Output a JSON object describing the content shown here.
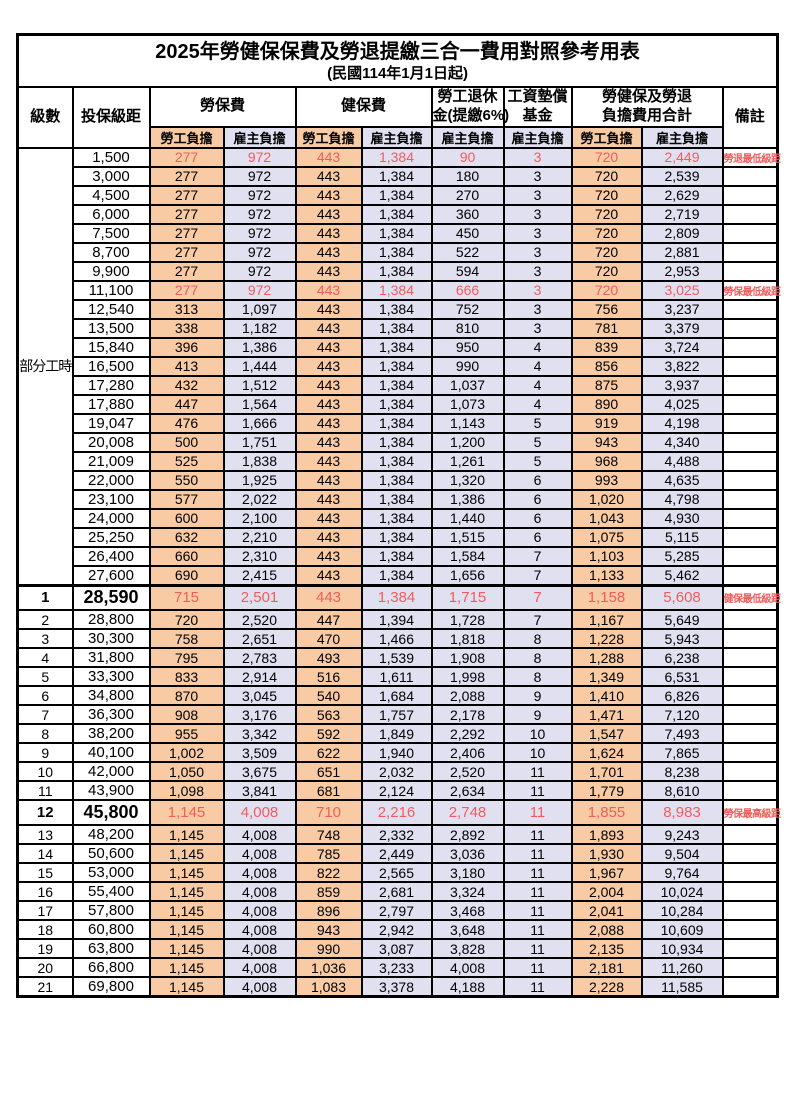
{
  "page": {
    "title": "2025年勞健保保費及勞退提繳三合一費用對照參考用表",
    "subtitle": "(民國114年1月1日起)"
  },
  "colors": {
    "employee_column_orange": "#f8cba4",
    "employer_column_lavender": "#e1e0f1",
    "highlight_red": "#f25c5c",
    "border_black": "#000000"
  },
  "table": {
    "headers": {
      "level": "級數",
      "bracket": "投保級距",
      "labor_insurance": "勞保費",
      "health_insurance": "健保費",
      "pension_line1": "勞工退休",
      "pension_line2": "金(提繳6%)",
      "arrear_line1": "工資墊償",
      "arrear_line2": "基金",
      "total_line1": "勞健保及勞退",
      "total_line2": "負擔費用合計",
      "remark": "備註",
      "employee": "勞工負擔",
      "employer": "雇主負擔"
    },
    "part_time_label": "部分工時",
    "rows": [
      {
        "level": "",
        "bracket": "1,500",
        "li_emp": "277",
        "li_er": "972",
        "hi_emp": "443",
        "hi_er": "1,384",
        "pension": "90",
        "arrear": "3",
        "tot_emp": "720",
        "tot_er": "2,449",
        "note": "勞退最低級距",
        "flag": "hl"
      },
      {
        "level": "",
        "bracket": "3,000",
        "li_emp": "277",
        "li_er": "972",
        "hi_emp": "443",
        "hi_er": "1,384",
        "pension": "180",
        "arrear": "3",
        "tot_emp": "720",
        "tot_er": "2,539",
        "note": "",
        "flag": ""
      },
      {
        "level": "",
        "bracket": "4,500",
        "li_emp": "277",
        "li_er": "972",
        "hi_emp": "443",
        "hi_er": "1,384",
        "pension": "270",
        "arrear": "3",
        "tot_emp": "720",
        "tot_er": "2,629",
        "note": "",
        "flag": ""
      },
      {
        "level": "",
        "bracket": "6,000",
        "li_emp": "277",
        "li_er": "972",
        "hi_emp": "443",
        "hi_er": "1,384",
        "pension": "360",
        "arrear": "3",
        "tot_emp": "720",
        "tot_er": "2,719",
        "note": "",
        "flag": ""
      },
      {
        "level": "",
        "bracket": "7,500",
        "li_emp": "277",
        "li_er": "972",
        "hi_emp": "443",
        "hi_er": "1,384",
        "pension": "450",
        "arrear": "3",
        "tot_emp": "720",
        "tot_er": "2,809",
        "note": "",
        "flag": ""
      },
      {
        "level": "",
        "bracket": "8,700",
        "li_emp": "277",
        "li_er": "972",
        "hi_emp": "443",
        "hi_er": "1,384",
        "pension": "522",
        "arrear": "3",
        "tot_emp": "720",
        "tot_er": "2,881",
        "note": "",
        "flag": ""
      },
      {
        "level": "",
        "bracket": "9,900",
        "li_emp": "277",
        "li_er": "972",
        "hi_emp": "443",
        "hi_er": "1,384",
        "pension": "594",
        "arrear": "3",
        "tot_emp": "720",
        "tot_er": "2,953",
        "note": "",
        "flag": ""
      },
      {
        "level": "",
        "bracket": "11,100",
        "li_emp": "277",
        "li_er": "972",
        "hi_emp": "443",
        "hi_er": "1,384",
        "pension": "666",
        "arrear": "3",
        "tot_emp": "720",
        "tot_er": "3,025",
        "note": "勞保最低級距",
        "flag": "hl"
      },
      {
        "level": "",
        "bracket": "12,540",
        "li_emp": "313",
        "li_er": "1,097",
        "hi_emp": "443",
        "hi_er": "1,384",
        "pension": "752",
        "arrear": "3",
        "tot_emp": "756",
        "tot_er": "3,237",
        "note": "",
        "flag": ""
      },
      {
        "level": "",
        "bracket": "13,500",
        "li_emp": "338",
        "li_er": "1,182",
        "hi_emp": "443",
        "hi_er": "1,384",
        "pension": "810",
        "arrear": "3",
        "tot_emp": "781",
        "tot_er": "3,379",
        "note": "",
        "flag": ""
      },
      {
        "level": "",
        "bracket": "15,840",
        "li_emp": "396",
        "li_er": "1,386",
        "hi_emp": "443",
        "hi_er": "1,384",
        "pension": "950",
        "arrear": "4",
        "tot_emp": "839",
        "tot_er": "3,724",
        "note": "",
        "flag": ""
      },
      {
        "level": "",
        "bracket": "16,500",
        "li_emp": "413",
        "li_er": "1,444",
        "hi_emp": "443",
        "hi_er": "1,384",
        "pension": "990",
        "arrear": "4",
        "tot_emp": "856",
        "tot_er": "3,822",
        "note": "",
        "flag": ""
      },
      {
        "level": "",
        "bracket": "17,280",
        "li_emp": "432",
        "li_er": "1,512",
        "hi_emp": "443",
        "hi_er": "1,384",
        "pension": "1,037",
        "arrear": "4",
        "tot_emp": "875",
        "tot_er": "3,937",
        "note": "",
        "flag": ""
      },
      {
        "level": "",
        "bracket": "17,880",
        "li_emp": "447",
        "li_er": "1,564",
        "hi_emp": "443",
        "hi_er": "1,384",
        "pension": "1,073",
        "arrear": "4",
        "tot_emp": "890",
        "tot_er": "4,025",
        "note": "",
        "flag": ""
      },
      {
        "level": "",
        "bracket": "19,047",
        "li_emp": "476",
        "li_er": "1,666",
        "hi_emp": "443",
        "hi_er": "1,384",
        "pension": "1,143",
        "arrear": "5",
        "tot_emp": "919",
        "tot_er": "4,198",
        "note": "",
        "flag": ""
      },
      {
        "level": "",
        "bracket": "20,008",
        "li_emp": "500",
        "li_er": "1,751",
        "hi_emp": "443",
        "hi_er": "1,384",
        "pension": "1,200",
        "arrear": "5",
        "tot_emp": "943",
        "tot_er": "4,340",
        "note": "",
        "flag": ""
      },
      {
        "level": "",
        "bracket": "21,009",
        "li_emp": "525",
        "li_er": "1,838",
        "hi_emp": "443",
        "hi_er": "1,384",
        "pension": "1,261",
        "arrear": "5",
        "tot_emp": "968",
        "tot_er": "4,488",
        "note": "",
        "flag": ""
      },
      {
        "level": "",
        "bracket": "22,000",
        "li_emp": "550",
        "li_er": "1,925",
        "hi_emp": "443",
        "hi_er": "1,384",
        "pension": "1,320",
        "arrear": "6",
        "tot_emp": "993",
        "tot_er": "4,635",
        "note": "",
        "flag": ""
      },
      {
        "level": "",
        "bracket": "23,100",
        "li_emp": "577",
        "li_er": "2,022",
        "hi_emp": "443",
        "hi_er": "1,384",
        "pension": "1,386",
        "arrear": "6",
        "tot_emp": "1,020",
        "tot_er": "4,798",
        "note": "",
        "flag": ""
      },
      {
        "level": "",
        "bracket": "24,000",
        "li_emp": "600",
        "li_er": "2,100",
        "hi_emp": "443",
        "hi_er": "1,384",
        "pension": "1,440",
        "arrear": "6",
        "tot_emp": "1,043",
        "tot_er": "4,930",
        "note": "",
        "flag": ""
      },
      {
        "level": "",
        "bracket": "25,250",
        "li_emp": "632",
        "li_er": "2,210",
        "hi_emp": "443",
        "hi_er": "1,384",
        "pension": "1,515",
        "arrear": "6",
        "tot_emp": "1,075",
        "tot_er": "5,115",
        "note": "",
        "flag": ""
      },
      {
        "level": "",
        "bracket": "26,400",
        "li_emp": "660",
        "li_er": "2,310",
        "hi_emp": "443",
        "hi_er": "1,384",
        "pension": "1,584",
        "arrear": "7",
        "tot_emp": "1,103",
        "tot_er": "5,285",
        "note": "",
        "flag": ""
      },
      {
        "level": "",
        "bracket": "27,600",
        "li_emp": "690",
        "li_er": "2,415",
        "hi_emp": "443",
        "hi_er": "1,384",
        "pension": "1,656",
        "arrear": "7",
        "tot_emp": "1,133",
        "tot_er": "5,462",
        "note": "",
        "flag": ""
      },
      {
        "level": "1",
        "bracket": "28,590",
        "li_emp": "715",
        "li_er": "2,501",
        "hi_emp": "443",
        "hi_er": "1,384",
        "pension": "1,715",
        "arrear": "7",
        "tot_emp": "1,158",
        "tot_er": "5,608",
        "note": "健保最低級距",
        "flag": "hl big sep"
      },
      {
        "level": "2",
        "bracket": "28,800",
        "li_emp": "720",
        "li_er": "2,520",
        "hi_emp": "447",
        "hi_er": "1,394",
        "pension": "1,728",
        "arrear": "7",
        "tot_emp": "1,167",
        "tot_er": "5,649",
        "note": "",
        "flag": ""
      },
      {
        "level": "3",
        "bracket": "30,300",
        "li_emp": "758",
        "li_er": "2,651",
        "hi_emp": "470",
        "hi_er": "1,466",
        "pension": "1,818",
        "arrear": "8",
        "tot_emp": "1,228",
        "tot_er": "5,943",
        "note": "",
        "flag": ""
      },
      {
        "level": "4",
        "bracket": "31,800",
        "li_emp": "795",
        "li_er": "2,783",
        "hi_emp": "493",
        "hi_er": "1,539",
        "pension": "1,908",
        "arrear": "8",
        "tot_emp": "1,288",
        "tot_er": "6,238",
        "note": "",
        "flag": ""
      },
      {
        "level": "5",
        "bracket": "33,300",
        "li_emp": "833",
        "li_er": "2,914",
        "hi_emp": "516",
        "hi_er": "1,611",
        "pension": "1,998",
        "arrear": "8",
        "tot_emp": "1,349",
        "tot_er": "6,531",
        "note": "",
        "flag": ""
      },
      {
        "level": "6",
        "bracket": "34,800",
        "li_emp": "870",
        "li_er": "3,045",
        "hi_emp": "540",
        "hi_er": "1,684",
        "pension": "2,088",
        "arrear": "9",
        "tot_emp": "1,410",
        "tot_er": "6,826",
        "note": "",
        "flag": ""
      },
      {
        "level": "7",
        "bracket": "36,300",
        "li_emp": "908",
        "li_er": "3,176",
        "hi_emp": "563",
        "hi_er": "1,757",
        "pension": "2,178",
        "arrear": "9",
        "tot_emp": "1,471",
        "tot_er": "7,120",
        "note": "",
        "flag": ""
      },
      {
        "level": "8",
        "bracket": "38,200",
        "li_emp": "955",
        "li_er": "3,342",
        "hi_emp": "592",
        "hi_er": "1,849",
        "pension": "2,292",
        "arrear": "10",
        "tot_emp": "1,547",
        "tot_er": "7,493",
        "note": "",
        "flag": ""
      },
      {
        "level": "9",
        "bracket": "40,100",
        "li_emp": "1,002",
        "li_er": "3,509",
        "hi_emp": "622",
        "hi_er": "1,940",
        "pension": "2,406",
        "arrear": "10",
        "tot_emp": "1,624",
        "tot_er": "7,865",
        "note": "",
        "flag": ""
      },
      {
        "level": "10",
        "bracket": "42,000",
        "li_emp": "1,050",
        "li_er": "3,675",
        "hi_emp": "651",
        "hi_er": "2,032",
        "pension": "2,520",
        "arrear": "11",
        "tot_emp": "1,701",
        "tot_er": "8,238",
        "note": "",
        "flag": ""
      },
      {
        "level": "11",
        "bracket": "43,900",
        "li_emp": "1,098",
        "li_er": "3,841",
        "hi_emp": "681",
        "hi_er": "2,124",
        "pension": "2,634",
        "arrear": "11",
        "tot_emp": "1,779",
        "tot_er": "8,610",
        "note": "",
        "flag": ""
      },
      {
        "level": "12",
        "bracket": "45,800",
        "li_emp": "1,145",
        "li_er": "4,008",
        "hi_emp": "710",
        "hi_er": "2,216",
        "pension": "2,748",
        "arrear": "11",
        "tot_emp": "1,855",
        "tot_er": "8,983",
        "note": "勞保最高級距",
        "flag": "hl big"
      },
      {
        "level": "13",
        "bracket": "48,200",
        "li_emp": "1,145",
        "li_er": "4,008",
        "hi_emp": "748",
        "hi_er": "2,332",
        "pension": "2,892",
        "arrear": "11",
        "tot_emp": "1,893",
        "tot_er": "9,243",
        "note": "",
        "flag": ""
      },
      {
        "level": "14",
        "bracket": "50,600",
        "li_emp": "1,145",
        "li_er": "4,008",
        "hi_emp": "785",
        "hi_er": "2,449",
        "pension": "3,036",
        "arrear": "11",
        "tot_emp": "1,930",
        "tot_er": "9,504",
        "note": "",
        "flag": ""
      },
      {
        "level": "15",
        "bracket": "53,000",
        "li_emp": "1,145",
        "li_er": "4,008",
        "hi_emp": "822",
        "hi_er": "2,565",
        "pension": "3,180",
        "arrear": "11",
        "tot_emp": "1,967",
        "tot_er": "9,764",
        "note": "",
        "flag": ""
      },
      {
        "level": "16",
        "bracket": "55,400",
        "li_emp": "1,145",
        "li_er": "4,008",
        "hi_emp": "859",
        "hi_er": "2,681",
        "pension": "3,324",
        "arrear": "11",
        "tot_emp": "2,004",
        "tot_er": "10,024",
        "note": "",
        "flag": ""
      },
      {
        "level": "17",
        "bracket": "57,800",
        "li_emp": "1,145",
        "li_er": "4,008",
        "hi_emp": "896",
        "hi_er": "2,797",
        "pension": "3,468",
        "arrear": "11",
        "tot_emp": "2,041",
        "tot_er": "10,284",
        "note": "",
        "flag": ""
      },
      {
        "level": "18",
        "bracket": "60,800",
        "li_emp": "1,145",
        "li_er": "4,008",
        "hi_emp": "943",
        "hi_er": "2,942",
        "pension": "3,648",
        "arrear": "11",
        "tot_emp": "2,088",
        "tot_er": "10,609",
        "note": "",
        "flag": ""
      },
      {
        "level": "19",
        "bracket": "63,800",
        "li_emp": "1,145",
        "li_er": "4,008",
        "hi_emp": "990",
        "hi_er": "3,087",
        "pension": "3,828",
        "arrear": "11",
        "tot_emp": "2,135",
        "tot_er": "10,934",
        "note": "",
        "flag": ""
      },
      {
        "level": "20",
        "bracket": "66,800",
        "li_emp": "1,145",
        "li_er": "4,008",
        "hi_emp": "1,036",
        "hi_er": "3,233",
        "pension": "4,008",
        "arrear": "11",
        "tot_emp": "2,181",
        "tot_er": "11,260",
        "note": "",
        "flag": ""
      },
      {
        "level": "21",
        "bracket": "69,800",
        "li_emp": "1,145",
        "li_er": "4,008",
        "hi_emp": "1,083",
        "hi_er": "3,378",
        "pension": "4,188",
        "arrear": "11",
        "tot_emp": "2,228",
        "tot_er": "11,585",
        "note": "",
        "flag": ""
      }
    ]
  }
}
